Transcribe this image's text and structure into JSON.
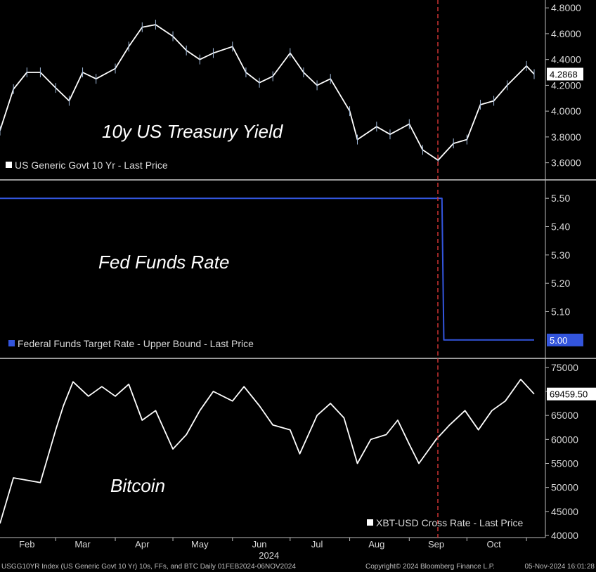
{
  "chart_data": [
    {
      "type": "line",
      "title": "10y US Treasury Yield",
      "legend": "US Generic Govt 10 Yr - Last Price",
      "ylim": [
        3.5,
        4.85
      ],
      "yticks": [
        "4.8000",
        "4.6000",
        "4.4000",
        "4.2000",
        "4.0000",
        "3.8000",
        "3.6000"
      ],
      "last_value": "4.2868",
      "series": [
        {
          "x": [
            "2024-02-01",
            "2024-02-08",
            "2024-02-15",
            "2024-02-22",
            "2024-03-01",
            "2024-03-08",
            "2024-03-15",
            "2024-03-22",
            "2024-04-01",
            "2024-04-08",
            "2024-04-15",
            "2024-04-22",
            "2024-05-01",
            "2024-05-08",
            "2024-05-15",
            "2024-05-22",
            "2024-06-01",
            "2024-06-08",
            "2024-06-15",
            "2024-06-22",
            "2024-07-01",
            "2024-07-08",
            "2024-07-15",
            "2024-07-22",
            "2024-08-01",
            "2024-08-05",
            "2024-08-15",
            "2024-08-22",
            "2024-09-01",
            "2024-09-08",
            "2024-09-16",
            "2024-09-24",
            "2024-10-01",
            "2024-10-08",
            "2024-10-15",
            "2024-10-22",
            "2024-11-01",
            "2024-11-05"
          ],
          "values": [
            3.85,
            4.17,
            4.3,
            4.3,
            4.18,
            4.08,
            4.3,
            4.25,
            4.33,
            4.5,
            4.65,
            4.67,
            4.58,
            4.47,
            4.4,
            4.45,
            4.5,
            4.3,
            4.22,
            4.27,
            4.45,
            4.3,
            4.2,
            4.25,
            4.0,
            3.78,
            3.88,
            3.82,
            3.9,
            3.7,
            3.62,
            3.75,
            3.78,
            4.05,
            4.08,
            4.2,
            4.35,
            4.2868
          ]
        }
      ]
    },
    {
      "type": "line",
      "title": "Fed Funds Rate",
      "legend": "Federal Funds Target Rate - Upper Bound - Last Price",
      "ylim": [
        4.95,
        5.55
      ],
      "yticks": [
        "5.50",
        "5.40",
        "5.30",
        "5.20",
        "5.10"
      ],
      "last_value": "5.00",
      "series": [
        {
          "x": [
            "2024-02-01",
            "2024-09-18",
            "2024-09-19",
            "2024-11-05"
          ],
          "values": [
            5.5,
            5.5,
            5.0,
            5.0
          ]
        }
      ]
    },
    {
      "type": "line",
      "title": "Bitcoin",
      "legend": "XBT-USD Cross Rate - Last Price",
      "ylim": [
        40000,
        76000
      ],
      "yticks": [
        "75000",
        "70000",
        "65000",
        "60000",
        "55000",
        "50000",
        "45000",
        "40000"
      ],
      "last_value": "69459.50",
      "series": [
        {
          "x": [
            "2024-02-01",
            "2024-02-08",
            "2024-02-15",
            "2024-02-22",
            "2024-03-01",
            "2024-03-05",
            "2024-03-10",
            "2024-03-18",
            "2024-03-25",
            "2024-04-01",
            "2024-04-08",
            "2024-04-15",
            "2024-04-22",
            "2024-05-01",
            "2024-05-08",
            "2024-05-15",
            "2024-05-22",
            "2024-06-01",
            "2024-06-07",
            "2024-06-15",
            "2024-06-22",
            "2024-07-01",
            "2024-07-06",
            "2024-07-15",
            "2024-07-22",
            "2024-07-29",
            "2024-08-05",
            "2024-08-12",
            "2024-08-20",
            "2024-08-26",
            "2024-09-01",
            "2024-09-06",
            "2024-09-15",
            "2024-09-22",
            "2024-09-30",
            "2024-10-07",
            "2024-10-14",
            "2024-10-21",
            "2024-10-29",
            "2024-11-05"
          ],
          "values": [
            42500,
            52000,
            51500,
            51000,
            62000,
            67000,
            72000,
            69000,
            71000,
            69000,
            71500,
            64000,
            66000,
            58000,
            61000,
            66000,
            70000,
            68000,
            71000,
            67000,
            63000,
            62000,
            57000,
            65000,
            67500,
            64500,
            55000,
            60000,
            61000,
            64000,
            59000,
            55000,
            60000,
            63000,
            66000,
            62000,
            66000,
            68000,
            72500,
            69459.5
          ]
        }
      ]
    }
  ],
  "x_axis": {
    "months": [
      "Feb",
      "Mar",
      "Apr",
      "May",
      "Jun",
      "Jul",
      "Aug",
      "Sep",
      "Oct"
    ],
    "year_label": "2024"
  },
  "footer": {
    "left": "USGG10YR Index (US Generic Govt 10 Yr) 10s, FFs, and BTC  Daily 01FEB2024-06NOV2024",
    "center": "Copyright© 2024 Bloomberg Finance L.P.",
    "right": "05-Nov-2024 16:01:28"
  },
  "colors": {
    "background": "#000000",
    "treasury": "#ffffff",
    "fed": "#3355dd",
    "bitcoin": "#ffffff",
    "event_line": "#cc3333",
    "separator": "#9a9a9a"
  }
}
